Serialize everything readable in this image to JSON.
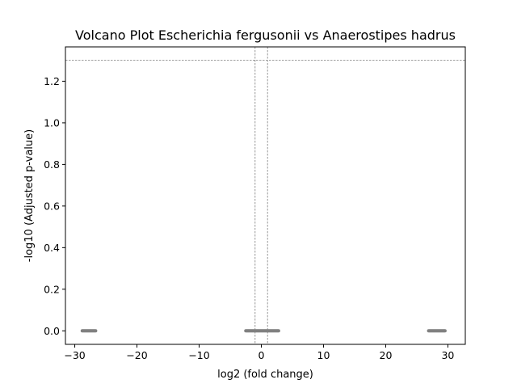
{
  "chart_data": {
    "type": "scatter",
    "title": "Volcano Plot Escherichia fergusonii vs Anaerostipes hadrus",
    "xlabel": "log2 (fold change)",
    "ylabel": "-log10 (Adjusted p-value)",
    "xlim": [
      -31.5,
      32.8
    ],
    "ylim": [
      -0.065,
      1.365
    ],
    "xticks": [
      -30,
      -20,
      -10,
      0,
      10,
      20,
      30
    ],
    "xtick_labels": [
      "−30",
      "−20",
      "−10",
      "0",
      "10",
      "20",
      "30"
    ],
    "yticks": [
      0.0,
      0.2,
      0.4,
      0.6,
      0.8,
      1.0,
      1.2
    ],
    "ytick_labels": [
      "0.0",
      "0.2",
      "0.4",
      "0.6",
      "0.8",
      "1.0",
      "1.2"
    ],
    "threshold_lines": {
      "horizontal_y": 1.301,
      "vertical_x": [
        -1,
        1
      ]
    },
    "grid": false,
    "point_color": "#808080",
    "guide_color": "#808080",
    "point_groups": [
      {
        "x_start": -28.8,
        "x_end": -26.6,
        "y": 0.0
      },
      {
        "x_start": -2.5,
        "x_end": 2.8,
        "y": 0.0
      },
      {
        "x_start": 26.9,
        "x_end": 29.6,
        "y": 0.0
      }
    ]
  }
}
